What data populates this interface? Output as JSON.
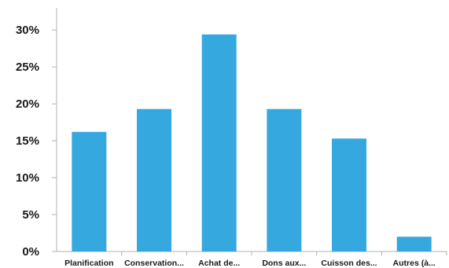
{
  "chart_data": {
    "type": "bar",
    "categories": [
      "Planification",
      "Conservation...",
      "Achat de...",
      "Dons aux...",
      "Cuisson des...",
      "Autres (à..."
    ],
    "values": [
      16.2,
      19.3,
      29.4,
      19.3,
      15.3,
      2.0
    ],
    "yticks": [
      "0%",
      "5%",
      "10%",
      "15%",
      "20%",
      "25%",
      "30%"
    ],
    "ylim": [
      0,
      33
    ],
    "grid": false,
    "bar_color": "#35a8e0",
    "axis_color": "#b0b0b0"
  }
}
